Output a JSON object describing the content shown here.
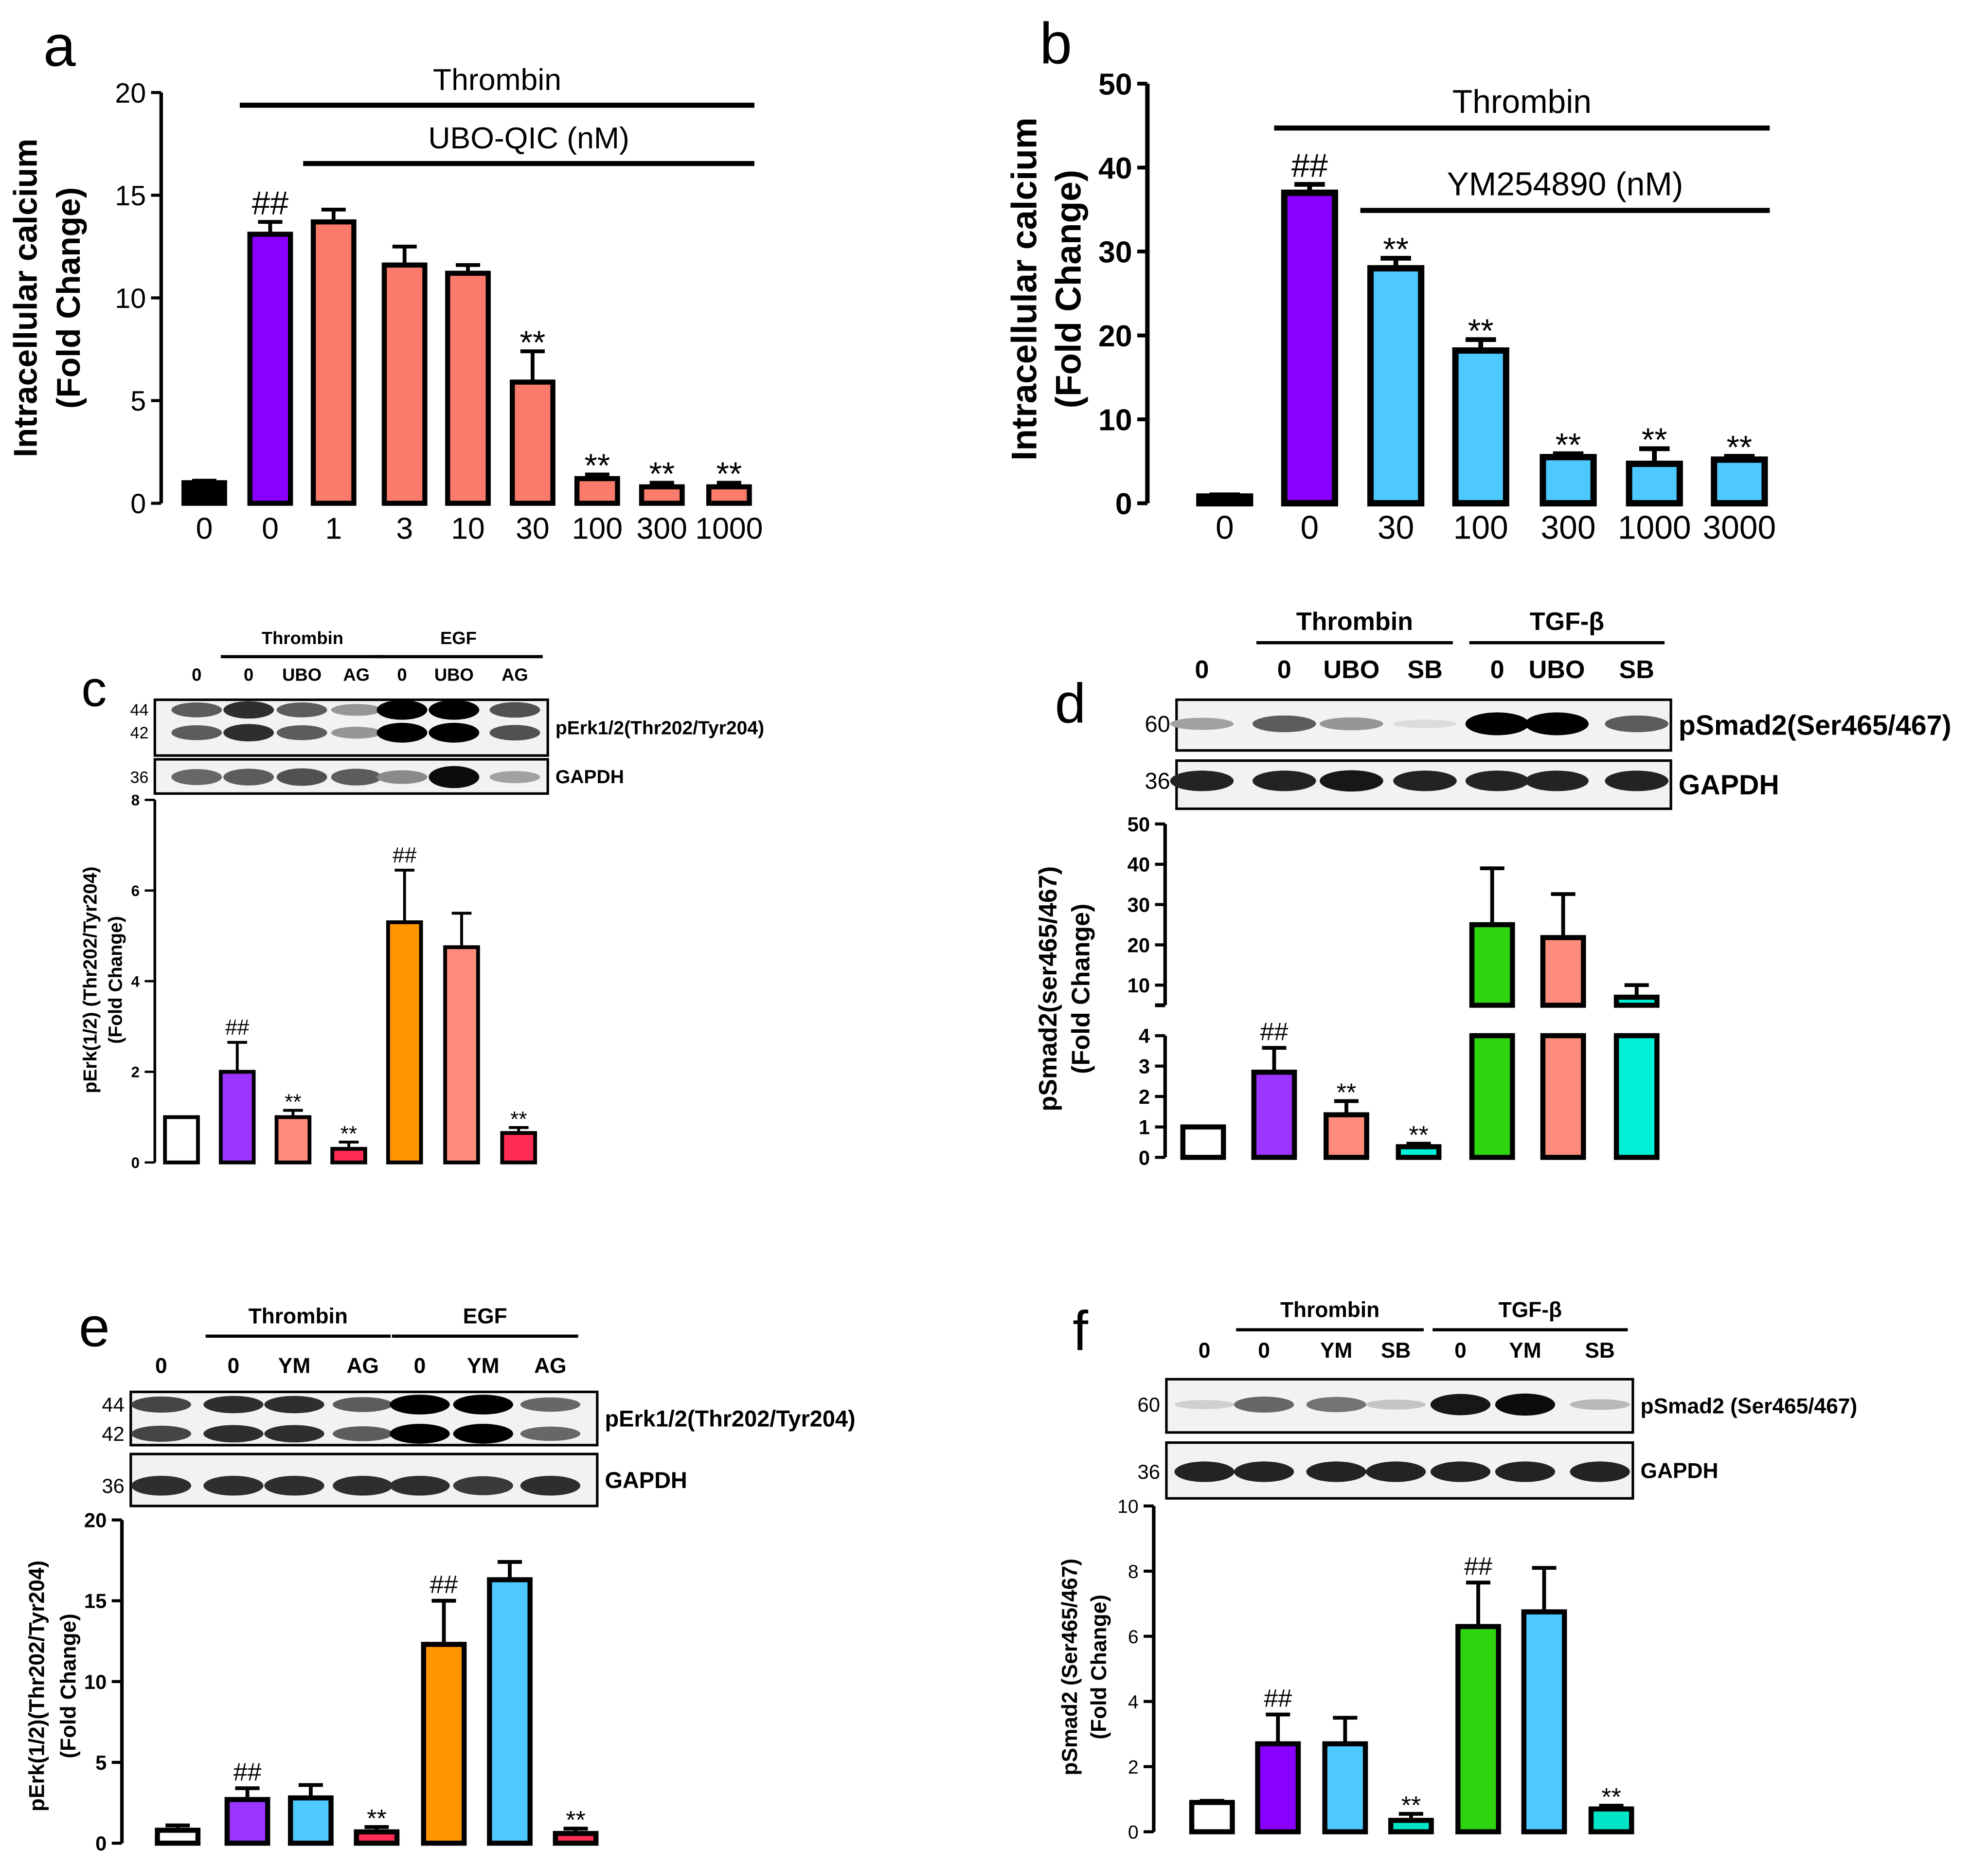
{
  "chart_data": [
    {
      "id": "a",
      "letter": "a",
      "type": "bar",
      "ylabel": [
        "Intracellular calcium",
        "(Fold Change)"
      ],
      "yaxis_segments": [
        {
          "range": [
            0,
            20
          ],
          "ticks": [
            0,
            5,
            10,
            15,
            20
          ]
        }
      ],
      "categories": [
        "0",
        "0",
        "1",
        "3",
        "10",
        "30",
        "100",
        "300",
        "1000"
      ],
      "values": [
        1.0,
        13.1,
        13.7,
        11.6,
        11.2,
        5.9,
        1.2,
        0.8,
        0.8
      ],
      "errors": [
        0.1,
        0.6,
        0.6,
        0.9,
        0.4,
        1.5,
        0.2,
        0.2,
        0.2
      ],
      "colors": [
        "#000000",
        "#8a00ff",
        "#fa7a6b",
        "#fa7a6b",
        "#fa7a6b",
        "#fa7a6b",
        "#fa7a6b",
        "#fa7a6b",
        "#fa7a6b"
      ],
      "annotations": [
        "",
        "##",
        "",
        "",
        "",
        "**",
        "**",
        "**",
        "**"
      ],
      "brackets": [
        {
          "label": "Thrombin",
          "from": 1,
          "to": 8
        },
        {
          "label": "UBO-QIC (nM)",
          "from": 2,
          "to": 8
        }
      ]
    },
    {
      "id": "b",
      "letter": "b",
      "type": "bar",
      "ylabel": [
        "Intracellular calcium",
        "(Fold Change)"
      ],
      "yaxis_segments": [
        {
          "range": [
            0,
            50
          ],
          "ticks": [
            0,
            10,
            20,
            30,
            40,
            50
          ]
        }
      ],
      "categories": [
        "0",
        "0",
        "30",
        "100",
        "300",
        "1000",
        "3000"
      ],
      "values": [
        0.8,
        37.0,
        28.0,
        18.2,
        5.5,
        4.7,
        5.2
      ],
      "errors": [
        0.2,
        1.0,
        1.2,
        1.3,
        0.4,
        1.8,
        0.4
      ],
      "colors": [
        "#000000",
        "#8a00ff",
        "#4dc9ff",
        "#4dc9ff",
        "#4dc9ff",
        "#4dc9ff",
        "#4dc9ff"
      ],
      "annotations": [
        "",
        "##",
        "**",
        "**",
        "**",
        "**",
        "**"
      ],
      "brackets": [
        {
          "label": "Thrombin",
          "from": 1,
          "to": 6
        },
        {
          "label": "YM254890 (nM)",
          "from": 2,
          "to": 6
        }
      ]
    },
    {
      "id": "c",
      "letter": "c",
      "type": "bar",
      "ylabel": [
        "pErk(1/2) (Thr202/Tyr204)",
        "(Fold Change)"
      ],
      "yaxis_segments": [
        {
          "range": [
            0,
            8
          ],
          "ticks": [
            0,
            2,
            4,
            6,
            8
          ]
        }
      ],
      "values": [
        1.0,
        2.0,
        1.0,
        0.3,
        5.3,
        4.75,
        0.65
      ],
      "errors": [
        0,
        0.65,
        0.15,
        0.15,
        1.15,
        0.75,
        0.12
      ],
      "colors": [
        "#ffffff",
        "#9b35ff",
        "#ff8c7a",
        "#ff2d55",
        "#ff9500",
        "#ff8c7a",
        "#ff2d55"
      ],
      "annotations": [
        "",
        "##",
        "**",
        "**",
        "##",
        "",
        "**"
      ],
      "blot": {
        "lanes": [
          "0",
          "0",
          "UBO",
          "AG",
          "0",
          "UBO",
          "AG"
        ],
        "groups": [
          {
            "label": "Thrombin",
            "from": 1,
            "to": 3
          },
          {
            "label": "EGF",
            "from": 4,
            "to": 6
          }
        ],
        "rows": [
          {
            "label": "pErk1/2(Thr202/Tyr204)",
            "markers": [
              "44",
              "42"
            ],
            "intensity": [
              0.6,
              0.8,
              0.6,
              0.35,
              1.0,
              1.0,
              0.65
            ]
          },
          {
            "label": "GAPDH",
            "markers": [
              "36"
            ],
            "intensity": [
              0.55,
              0.6,
              0.65,
              0.6,
              0.4,
              0.95,
              0.3
            ]
          }
        ]
      }
    },
    {
      "id": "d",
      "letter": "d",
      "type": "bar",
      "ylabel": [
        "pSmad2(ser465/467)",
        "(Fold Change)"
      ],
      "yaxis_segments": [
        {
          "range": [
            0,
            4
          ],
          "ticks": [
            0,
            1,
            2,
            3,
            4
          ]
        },
        {
          "range": [
            5,
            50
          ],
          "ticks": [
            10,
            20,
            30,
            40,
            50
          ]
        }
      ],
      "values": [
        1.0,
        2.8,
        1.4,
        0.35,
        25.0,
        21.8,
        7.0
      ],
      "errors": [
        0,
        0.8,
        0.45,
        0.1,
        14.0,
        10.8,
        3.0
      ],
      "colors": [
        "#ffffff",
        "#9b35ff",
        "#ff8c7a",
        "#00f0d8",
        "#2ed410",
        "#ff8c7a",
        "#00f0d8"
      ],
      "annotations": [
        "",
        "##",
        "**",
        "**",
        "",
        "",
        ""
      ],
      "blot": {
        "lanes": [
          "0",
          "0",
          "UBO",
          "SB",
          "0",
          "UBO",
          "SB"
        ],
        "groups": [
          {
            "label": "Thrombin",
            "from": 1,
            "to": 3
          },
          {
            "label": "TGF-β",
            "from": 4,
            "to": 6
          }
        ],
        "rows": [
          {
            "label": "pSmad2(Ser465/467)",
            "markers": [
              "60"
            ],
            "intensity": [
              0.3,
              0.6,
              0.35,
              0.05,
              1.0,
              1.0,
              0.6
            ]
          },
          {
            "label": "GAPDH",
            "markers": [
              "36"
            ],
            "intensity": [
              0.85,
              0.85,
              0.9,
              0.85,
              0.85,
              0.85,
              0.85
            ]
          }
        ]
      }
    },
    {
      "id": "e",
      "letter": "e",
      "type": "bar",
      "ylabel": [
        "pErk(1/2)(Thr202/Tyr204)",
        "(Fold  Change)"
      ],
      "yaxis_segments": [
        {
          "range": [
            0,
            20
          ],
          "ticks": [
            0,
            5,
            10,
            15,
            20
          ]
        }
      ],
      "values": [
        0.8,
        2.7,
        2.8,
        0.7,
        12.3,
        16.3,
        0.6
      ],
      "errors": [
        0.3,
        0.7,
        0.8,
        0.3,
        2.7,
        1.1,
        0.3
      ],
      "colors": [
        "#ffffff",
        "#9b35ff",
        "#4dc9ff",
        "#ff2d55",
        "#ff9500",
        "#4dc9ff",
        "#ff2d55"
      ],
      "annotations": [
        "",
        "##",
        "",
        "**",
        "##",
        "",
        "**"
      ],
      "blot": {
        "lanes": [
          "0",
          "0",
          "YM",
          "AG",
          "0",
          "YM",
          "AG"
        ],
        "groups": [
          {
            "label": "Thrombin",
            "from": 1,
            "to": 3
          },
          {
            "label": "EGF",
            "from": 4,
            "to": 6
          }
        ],
        "rows": [
          {
            "label": "pErk1/2(Thr202/Tyr204)",
            "markers": [
              "44",
              "42"
            ],
            "intensity": [
              0.7,
              0.8,
              0.8,
              0.6,
              1.0,
              1.0,
              0.55
            ]
          },
          {
            "label": "GAPDH",
            "markers": [
              "36"
            ],
            "intensity": [
              0.8,
              0.8,
              0.8,
              0.8,
              0.8,
              0.75,
              0.8
            ]
          }
        ]
      }
    },
    {
      "id": "f",
      "letter": "f",
      "type": "bar",
      "ylabel": [
        "pSmad2 (Ser465/467)",
        "(Fold  Change)"
      ],
      "yaxis_segments": [
        {
          "range": [
            0,
            10
          ],
          "ticks": [
            0,
            2,
            4,
            6,
            8,
            10
          ]
        }
      ],
      "values": [
        0.9,
        2.7,
        2.7,
        0.35,
        6.3,
        6.75,
        0.7
      ],
      "errors": [
        0.05,
        0.9,
        0.8,
        0.2,
        1.35,
        1.35,
        0.1
      ],
      "colors": [
        "#ffffff",
        "#8a00ff",
        "#4dc9ff",
        "#00e5c8",
        "#2ed410",
        "#4dc9ff",
        "#00e5c8"
      ],
      "annotations": [
        "",
        "##",
        "",
        "**",
        "##",
        "",
        "**"
      ],
      "blot": {
        "lanes": [
          "0",
          "0",
          "YM",
          "SB",
          "0",
          "YM",
          "SB"
        ],
        "groups": [
          {
            "label": "Thrombin",
            "from": 1,
            "to": 3
          },
          {
            "label": "TGF-β",
            "from": 4,
            "to": 6
          }
        ],
        "rows": [
          {
            "label": "pSmad2 (Ser465/467)",
            "markers": [
              "60"
            ],
            "intensity": [
              0.1,
              0.55,
              0.5,
              0.15,
              0.9,
              0.95,
              0.2
            ]
          },
          {
            "label": "GAPDH",
            "markers": [
              "36"
            ],
            "intensity": [
              0.85,
              0.85,
              0.85,
              0.85,
              0.85,
              0.85,
              0.85
            ]
          }
        ]
      }
    }
  ]
}
